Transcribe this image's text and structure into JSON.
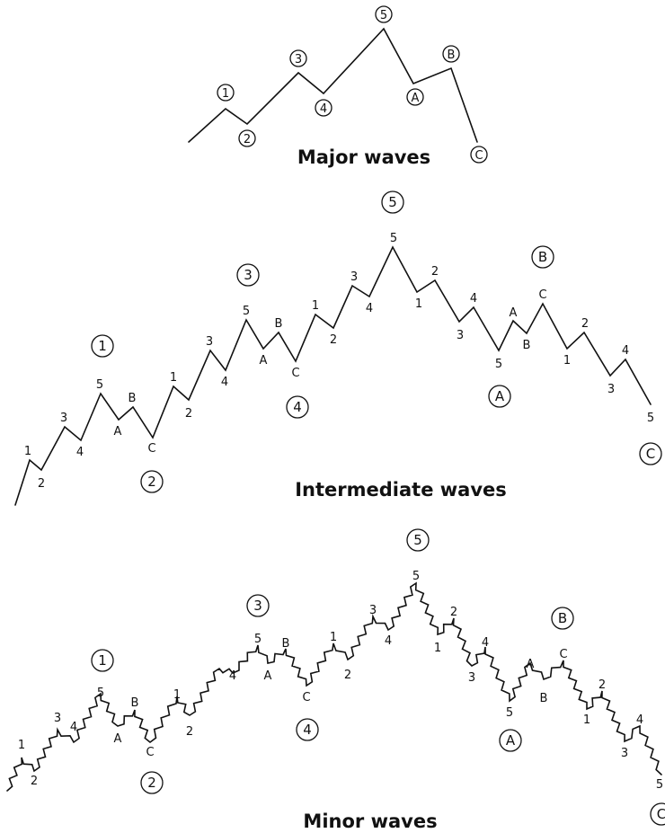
{
  "captions": {
    "major": "Major waves",
    "intermediate": "Intermediate waves",
    "minor": "Minor waves"
  },
  "major": {
    "labels": [
      "1",
      "2",
      "3",
      "4",
      "5",
      "A",
      "B",
      "C"
    ]
  },
  "intermediate": {
    "circled": [
      "1",
      "2",
      "3",
      "4",
      "5",
      "A",
      "B",
      "C"
    ],
    "sub": [
      "1",
      "2",
      "3",
      "4",
      "5",
      "A",
      "B",
      "C",
      "1",
      "2",
      "3",
      "4",
      "5",
      "A",
      "B",
      "C",
      "1",
      "2",
      "3",
      "4",
      "5",
      "1",
      "2",
      "3",
      "4",
      "5",
      "A",
      "B",
      "C",
      "1",
      "2",
      "3",
      "4",
      "5"
    ]
  },
  "minor": {
    "circled": [
      "1",
      "2",
      "3",
      "4",
      "5",
      "A",
      "B",
      "C"
    ],
    "sub": [
      "1",
      "2",
      "3",
      "4",
      "5",
      "A",
      "B",
      "C",
      "1",
      "2",
      "-",
      "4",
      "5",
      "A",
      "B",
      "C",
      "1",
      "2",
      "3",
      "4",
      "5",
      "1",
      "2",
      "3",
      "4",
      "5",
      "A",
      "B",
      "C",
      "1",
      "2",
      "3",
      "4",
      "5"
    ]
  }
}
